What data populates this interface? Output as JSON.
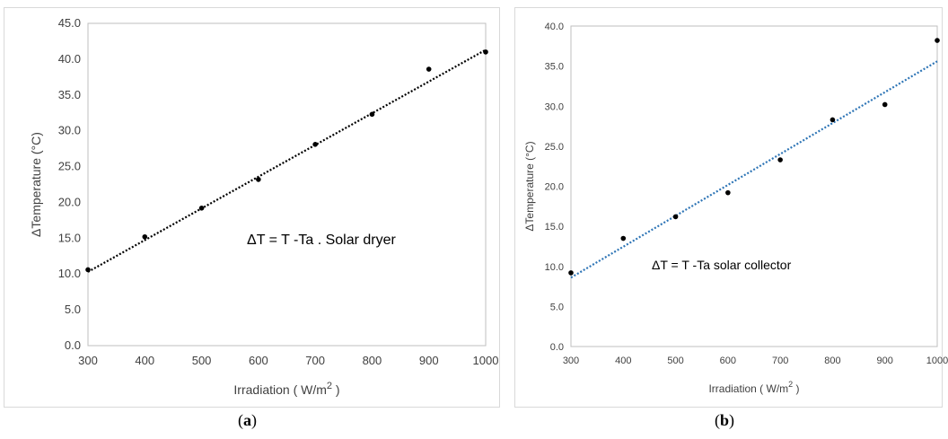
{
  "chart_data": [
    {
      "type": "scatter",
      "panel_label": "a",
      "xlabel": "Irradiation ( W/m",
      "xlabel_sup": "2",
      "xlabel_end": ")",
      "ylabel": "ΔTemperature (°C)",
      "xlim": [
        300,
        1000
      ],
      "ylim": [
        0,
        45
      ],
      "x_ticks": [
        "300",
        "400",
        "500",
        "600",
        "700",
        "800",
        "900",
        "1000"
      ],
      "y_ticks": [
        "0.0",
        "5.0",
        "10.0",
        "15.0",
        "20.0",
        "25.0",
        "30.0",
        "35.0",
        "40.0",
        "45.0"
      ],
      "annotation": "ΔT = T -Ta . Solar dryer",
      "series": [
        {
          "x": [
            300,
            400,
            500,
            600,
            700,
            800,
            900,
            1000
          ],
          "y": [
            10.6,
            15.2,
            19.2,
            23.2,
            28.1,
            32.3,
            38.6,
            41.0
          ],
          "color": "#000000"
        }
      ],
      "trendline": {
        "style": "dotted",
        "color": "#000000",
        "x": [
          300,
          1000
        ],
        "y": [
          10.3,
          41.3
        ]
      },
      "grid": false
    },
    {
      "type": "scatter",
      "panel_label": "b",
      "xlabel": "Irradiation ( W/m",
      "xlabel_sup": "2",
      "xlabel_end": ")",
      "ylabel": "ΔTemperature (°C)",
      "xlim": [
        300,
        1000
      ],
      "ylim": [
        0,
        40
      ],
      "x_ticks": [
        "300",
        "400",
        "500",
        "600",
        "700",
        "800",
        "900",
        "1000"
      ],
      "y_ticks": [
        "0.0",
        "5.0",
        "10.0",
        "15.0",
        "20.0",
        "25.0",
        "30.0",
        "35.0",
        "40.0"
      ],
      "annotation": "ΔT = T -Ta  solar collector",
      "series": [
        {
          "x": [
            300,
            400,
            500,
            600,
            700,
            800,
            900,
            1000
          ],
          "y": [
            9.2,
            13.5,
            16.2,
            19.2,
            23.3,
            28.3,
            30.2,
            38.2
          ],
          "color": "#000000"
        }
      ],
      "trendline": {
        "style": "dotted",
        "color": "#2e75b6",
        "x": [
          300,
          1000
        ],
        "y": [
          8.6,
          35.6
        ]
      },
      "grid": false
    }
  ]
}
